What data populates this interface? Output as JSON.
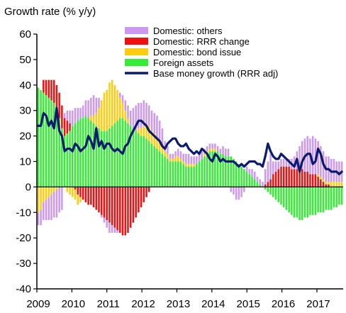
{
  "chart_data": {
    "type": "bar",
    "title": "Growth rate (% y/y)",
    "xlabel": "",
    "ylabel": "",
    "ylim": [
      -40,
      60
    ],
    "y_ticks": [
      60,
      50,
      40,
      30,
      20,
      10,
      0,
      -10,
      -20,
      -30,
      -40
    ],
    "x_tick_labels": [
      "2009",
      "2010",
      "2011",
      "2012",
      "2013",
      "2014",
      "2015",
      "2016",
      "2017"
    ],
    "x_range": [
      2009.0,
      2017.75
    ],
    "bar_stacking": "positive and negative contributions stacked separately from zero",
    "grid": false,
    "legend_position": "top-right",
    "series": [
      {
        "name": "Foreign assets",
        "kind": "bar",
        "color": "#33ee33",
        "values": [
          39,
          38,
          37,
          36,
          35,
          34,
          33,
          30,
          27,
          23,
          20,
          21,
          22,
          24,
          25,
          26,
          27,
          27,
          28,
          27,
          26,
          25,
          24,
          23,
          22,
          22,
          22,
          23,
          24,
          25,
          26,
          27,
          27,
          26,
          25,
          24,
          23,
          22,
          21,
          20,
          20,
          19,
          18,
          17,
          16,
          15,
          14,
          13,
          12,
          11,
          10,
          10,
          10,
          10,
          10,
          9,
          8,
          8,
          8,
          8,
          9,
          10,
          11,
          12,
          13,
          14,
          14,
          14,
          14,
          13,
          13,
          12,
          12,
          12,
          11,
          10,
          9,
          8,
          7,
          6,
          5,
          4,
          3,
          2,
          1,
          0,
          -1,
          -2,
          -3,
          -4,
          -5,
          -6,
          -7,
          -8,
          -9,
          -10,
          -11,
          -12,
          -12,
          -13,
          -13,
          -12,
          -12,
          -11,
          -11,
          -11,
          -10,
          -10,
          -10,
          -9,
          -9,
          -9,
          -8,
          -8,
          -7,
          -7
        ]
      },
      {
        "name": "Domestic: RRR change",
        "kind": "bar",
        "color": "#ee1111",
        "values": [
          0,
          0,
          5,
          6,
          7,
          8,
          9,
          10,
          10,
          9,
          7,
          5,
          3,
          0,
          -1,
          -3,
          -4,
          -5,
          -6,
          -7,
          -7,
          -8,
          -9,
          -10,
          -11,
          -12,
          -13,
          -14,
          -15,
          -16,
          -17,
          -18,
          -19,
          -19,
          -18,
          -16,
          -14,
          -12,
          -10,
          -8,
          -6,
          -4,
          -2,
          0,
          0,
          0,
          0,
          0,
          0,
          0,
          0,
          0,
          0,
          0,
          0,
          0,
          0,
          0,
          0,
          0,
          0,
          0,
          0,
          0,
          0,
          0,
          0,
          0,
          0,
          0,
          0,
          0,
          0,
          0,
          0,
          0,
          0,
          0,
          0,
          0,
          0,
          0,
          0,
          0,
          0,
          0,
          1,
          2,
          3,
          5,
          6,
          7,
          8,
          8,
          8,
          8,
          7,
          7,
          7,
          7,
          7,
          6,
          6,
          5,
          5,
          5,
          4,
          3,
          2,
          1,
          1,
          0,
          0,
          0,
          0,
          0
        ]
      },
      {
        "name": "Domestic: bond issue",
        "kind": "bar",
        "color": "#ffcc11",
        "values": [
          -10,
          -9,
          -6,
          -5,
          -4,
          -3,
          -2,
          -1,
          0,
          0,
          0,
          -2,
          -3,
          -4,
          -4,
          -4,
          -2,
          0,
          0,
          0,
          2,
          3,
          5,
          8,
          12,
          15,
          16,
          18,
          18,
          15,
          12,
          8,
          6,
          4,
          2,
          0,
          0,
          0,
          2,
          3,
          4,
          5,
          6,
          5,
          5,
          4,
          4,
          3,
          2,
          2,
          1,
          1,
          2,
          2,
          1,
          1,
          1,
          1,
          1,
          1,
          0,
          0,
          0,
          1,
          1,
          1,
          1,
          1,
          0,
          0,
          0,
          0,
          0,
          0,
          0,
          0,
          0,
          0,
          0,
          0,
          0,
          0,
          0,
          0,
          0,
          0,
          0,
          0,
          0,
          0,
          0,
          0,
          0,
          0,
          0,
          0,
          0,
          0,
          0,
          0,
          0,
          0,
          0,
          0,
          0,
          0,
          1,
          1,
          1,
          1,
          1,
          2,
          2,
          2,
          2,
          2
        ]
      },
      {
        "name": "Domestic: others",
        "kind": "bar",
        "color": "#cc99ee",
        "values": [
          -5,
          -6,
          -7,
          -8,
          -9,
          -10,
          -10,
          -11,
          -10,
          -9,
          2,
          4,
          5,
          6,
          6,
          5,
          4,
          5,
          6,
          7,
          7,
          8,
          6,
          4,
          -1,
          -2,
          -3,
          -4,
          -3,
          -2,
          -1,
          2,
          3,
          4,
          5,
          6,
          8,
          10,
          10,
          10,
          10,
          9,
          8,
          8,
          8,
          9,
          8,
          7,
          4,
          3,
          2,
          2,
          2,
          3,
          3,
          3,
          4,
          4,
          3,
          3,
          3,
          3,
          3,
          2,
          2,
          2,
          2,
          2,
          2,
          2,
          3,
          3,
          3,
          -2,
          -3,
          -5,
          -5,
          -4,
          -2,
          2,
          2,
          3,
          3,
          2,
          2,
          2,
          6,
          8,
          10,
          5,
          4,
          3,
          3,
          3,
          3,
          3,
          4,
          5,
          7,
          9,
          11,
          13,
          14,
          14,
          15,
          14,
          13,
          12,
          11,
          10,
          10,
          9,
          9,
          8,
          8,
          8
        ]
      },
      {
        "name": "Base money growth (RRR adj)",
        "kind": "line",
        "color": "#0a1a6e",
        "values": [
          24,
          24,
          29,
          28,
          24,
          26,
          23,
          31,
          22,
          20,
          14,
          15,
          15,
          14,
          17,
          16,
          14,
          15,
          16,
          20,
          18,
          15,
          23,
          16,
          18,
          15,
          17,
          17,
          15,
          14,
          15,
          14,
          13,
          16,
          17,
          20,
          22,
          24,
          26,
          26,
          25,
          24,
          22,
          21,
          20,
          19,
          18,
          16,
          15,
          17,
          18,
          19,
          19,
          17,
          16,
          16,
          17,
          15,
          14,
          13,
          14,
          13,
          15,
          14,
          13,
          11,
          10,
          13,
          12,
          10,
          11,
          10,
          10,
          10,
          10,
          9,
          8,
          9,
          8,
          9,
          10,
          10,
          10,
          9,
          9,
          8,
          12,
          17,
          14,
          12,
          11,
          11,
          13,
          12,
          11,
          10,
          9,
          8,
          11,
          6,
          10,
          12,
          13,
          13,
          9,
          10,
          15,
          13,
          9,
          7,
          7,
          6,
          6,
          6,
          5,
          6
        ]
      }
    ],
    "legend_order": [
      "Domestic: others",
      "Domestic: RRR change",
      "Domestic: bond issue",
      "Foreign assets",
      "Base money growth (RRR adj)"
    ]
  }
}
